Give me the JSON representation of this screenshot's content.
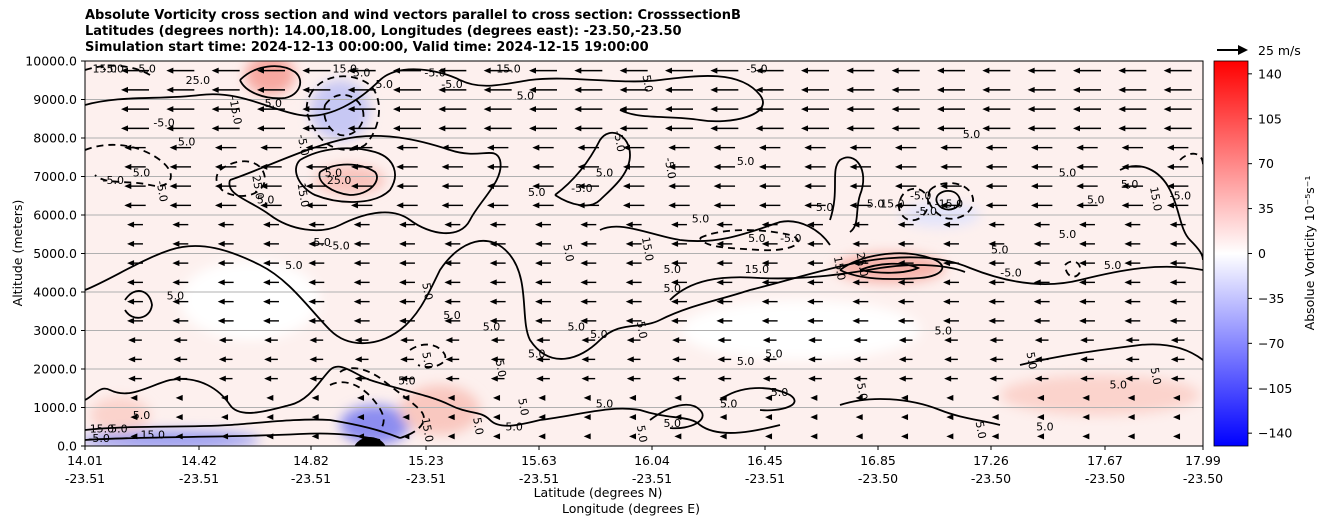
{
  "chart_data": {
    "type": "heatmap",
    "title_lines": [
      "Absolute Vorticity cross section and wind vectors parallel to cross section: CrosssectionB",
      "Latitudes (degrees north): 14.00,18.00, Longitudes (degrees east): -23.50,-23.50",
      "Simulation start time: 2024-12-13 00:00:00, Valid time: 2024-12-15 19:00:00"
    ],
    "ylabel": "Altitude (meters)",
    "xlabel_line1": "Latitude (degrees N)",
    "xlabel_line2": "Longitude (degrees E)",
    "ylim": [
      0,
      10000
    ],
    "y_ticks": [
      "0.0",
      "1000.0",
      "2000.0",
      "3000.0",
      "4000.0",
      "5000.0",
      "6000.0",
      "7000.0",
      "8000.0",
      "9000.0",
      "10000.0"
    ],
    "x_ticks": [
      {
        "lat": "14.01",
        "lon": "-23.51"
      },
      {
        "lat": "14.42",
        "lon": "-23.51"
      },
      {
        "lat": "14.82",
        "lon": "-23.51"
      },
      {
        "lat": "15.23",
        "lon": "-23.51"
      },
      {
        "lat": "15.63",
        "lon": "-23.51"
      },
      {
        "lat": "16.04",
        "lon": "-23.51"
      },
      {
        "lat": "16.45",
        "lon": "-23.51"
      },
      {
        "lat": "16.85",
        "lon": "-23.50"
      },
      {
        "lat": "17.26",
        "lon": "-23.50"
      },
      {
        "lat": "17.67",
        "lon": "-23.50"
      },
      {
        "lat": "17.99",
        "lon": "-23.50"
      }
    ],
    "grid": "horizontal",
    "colorbar": {
      "label": "Absolue Vorticity 10⁻⁵s⁻¹",
      "range": [
        -150,
        150
      ],
      "ticks": [
        "140",
        "105",
        "70",
        "35",
        "0",
        "−35",
        "−70",
        "−105",
        "−140"
      ],
      "colormap": "bwr",
      "colors": {
        "low": "#0000ff",
        "mid": "#ffffff",
        "high": "#ff0000"
      }
    },
    "wind_reference": "25 m/s",
    "contour_levels": [
      -15.0,
      -5.0,
      5.0,
      15.0,
      25.0
    ],
    "contour_labels": [
      {
        "text": "5.0",
        "x": 0.6,
        "y": 350
      },
      {
        "text": "15.0",
        "x": 0.3,
        "y": 350
      },
      {
        "text": "-5.0",
        "x": 0.25,
        "y": 100
      },
      {
        "text": "15.0",
        "x": 1.2,
        "y": 200
      },
      {
        "text": "5.0",
        "x": 1.0,
        "y": 700
      },
      {
        "text": "15.0",
        "x": 0.35,
        "y": 9700
      },
      {
        "text": "-5.0",
        "x": 0.5,
        "y": 9700
      },
      {
        "text": "5.0",
        "x": 1.1,
        "y": 9700
      },
      {
        "text": "25.0",
        "x": 2.0,
        "y": 9400
      },
      {
        "text": "-15.0",
        "x": 2.6,
        "y": 8700
      },
      {
        "text": "-5.0",
        "x": 3.3,
        "y": 8800
      },
      {
        "text": "15.0",
        "x": 4.6,
        "y": 9700
      },
      {
        "text": "5.0",
        "x": 4.9,
        "y": 9600
      },
      {
        "text": "5.0",
        "x": 5.3,
        "y": 9300
      },
      {
        "text": "-5.0",
        "x": 6.2,
        "y": 9600
      },
      {
        "text": "-5.0",
        "x": 6.5,
        "y": 9300
      },
      {
        "text": "15.0",
        "x": 7.5,
        "y": 9700
      },
      {
        "text": "5.0",
        "x": 7.8,
        "y": 9000
      },
      {
        "text": "5.0",
        "x": 9.9,
        "y": 9400
      },
      {
        "text": "-5.0",
        "x": 11.9,
        "y": 9700
      },
      {
        "text": "5.0",
        "x": 15.7,
        "y": 8000
      },
      {
        "text": "-5.0",
        "x": 0.5,
        "y": 6800
      },
      {
        "text": "5.0",
        "x": 1.0,
        "y": 7000
      },
      {
        "text": "-5.0",
        "x": 1.3,
        "y": 6600
      },
      {
        "text": "-5.0",
        "x": 1.4,
        "y": 8300
      },
      {
        "text": "5.0",
        "x": 1.8,
        "y": 7800
      },
      {
        "text": "25.0",
        "x": 3.0,
        "y": 6700
      },
      {
        "text": "5.0",
        "x": 3.2,
        "y": 6300
      },
      {
        "text": "15.0",
        "x": 3.8,
        "y": 6500
      },
      {
        "text": "-5.0",
        "x": 3.8,
        "y": 7800
      },
      {
        "text": "25.0",
        "x": 4.5,
        "y": 6800
      },
      {
        "text": "5.0",
        "x": 4.4,
        "y": 7000
      },
      {
        "text": "5.0",
        "x": 4.2,
        "y": 5200
      },
      {
        "text": "-5.0",
        "x": 4.5,
        "y": 5100
      },
      {
        "text": "5.0",
        "x": 3.7,
        "y": 4600
      },
      {
        "text": "5.0",
        "x": 1.6,
        "y": 3800
      },
      {
        "text": "5.0",
        "x": 6.0,
        "y": 4000
      },
      {
        "text": "5.0",
        "x": 6.5,
        "y": 3300
      },
      {
        "text": "5.0",
        "x": 7.2,
        "y": 3000
      },
      {
        "text": "5.0",
        "x": 8.0,
        "y": 2300
      },
      {
        "text": "5.0",
        "x": 8.0,
        "y": 6500
      },
      {
        "text": "-5.0",
        "x": 8.8,
        "y": 6600
      },
      {
        "text": "5.0",
        "x": 9.2,
        "y": 7000
      },
      {
        "text": "-5.0",
        "x": 9.4,
        "y": 7900
      },
      {
        "text": "5.0",
        "x": 8.5,
        "y": 5000
      },
      {
        "text": "5.0",
        "x": 8.7,
        "y": 3000
      },
      {
        "text": "5.0",
        "x": 9.1,
        "y": 2800
      },
      {
        "text": "5.0",
        "x": 9.8,
        "y": 3000
      },
      {
        "text": "15.0",
        "x": 9.9,
        "y": 5100
      },
      {
        "text": "5.0",
        "x": 10.4,
        "y": 4500
      },
      {
        "text": "5.0",
        "x": 10.4,
        "y": 4000
      },
      {
        "text": "-5.0",
        "x": 10.3,
        "y": 7200
      },
      {
        "text": "5.0",
        "x": 10.9,
        "y": 5800
      },
      {
        "text": "5.0",
        "x": 11.7,
        "y": 7300
      },
      {
        "text": "5.0",
        "x": 11.9,
        "y": 5300
      },
      {
        "text": "15.0",
        "x": 11.9,
        "y": 4500
      },
      {
        "text": "-5.0",
        "x": 12.5,
        "y": 5300
      },
      {
        "text": "5.0",
        "x": 13.1,
        "y": 6100
      },
      {
        "text": "15.0",
        "x": 13.3,
        "y": 4600
      },
      {
        "text": "25.0",
        "x": 13.7,
        "y": 4700
      },
      {
        "text": "5.0",
        "x": 14.0,
        "y": 6200
      },
      {
        "text": "15.0",
        "x": 14.3,
        "y": 6200
      },
      {
        "text": "-5.0",
        "x": 14.8,
        "y": 6400
      },
      {
        "text": "-5.0",
        "x": 14.9,
        "y": 6000
      },
      {
        "text": "-15.0",
        "x": 15.3,
        "y": 6200
      },
      {
        "text": "5.0",
        "x": 16.2,
        "y": 5000
      },
      {
        "text": "-5.0",
        "x": 16.4,
        "y": 4400
      },
      {
        "text": "5.0",
        "x": 17.4,
        "y": 7000
      },
      {
        "text": "5.0",
        "x": 17.9,
        "y": 6300
      },
      {
        "text": "15.0",
        "x": 18.9,
        "y": 6400
      },
      {
        "text": "5.0",
        "x": 18.5,
        "y": 6700
      },
      {
        "text": "-5.0",
        "x": 19.4,
        "y": 6400
      },
      {
        "text": "5.0",
        "x": 17.4,
        "y": 5400
      },
      {
        "text": "5.0",
        "x": 18.2,
        "y": 4600
      },
      {
        "text": "5.0",
        "x": 15.2,
        "y": 2900
      },
      {
        "text": "5.0",
        "x": 12.2,
        "y": 2300
      },
      {
        "text": "5.0",
        "x": 11.7,
        "y": 2100
      },
      {
        "text": "5.0",
        "x": 12.3,
        "y": 1300
      },
      {
        "text": "5.0",
        "x": 11.4,
        "y": 1000
      },
      {
        "text": "5.0",
        "x": 9.8,
        "y": 300
      },
      {
        "text": "5.0",
        "x": 10.4,
        "y": 500
      },
      {
        "text": "5.0",
        "x": 9.2,
        "y": 1000
      },
      {
        "text": "5.0",
        "x": 7.6,
        "y": 400
      },
      {
        "text": "5.0",
        "x": 6.9,
        "y": 500
      },
      {
        "text": "5.0",
        "x": 7.7,
        "y": 1000
      },
      {
        "text": "5.0",
        "x": 6.0,
        "y": 2200
      },
      {
        "text": "5.0",
        "x": 5.7,
        "y": 1600
      },
      {
        "text": "15.0",
        "x": 6.0,
        "y": 400
      },
      {
        "text": "5.0",
        "x": 15.8,
        "y": 400
      },
      {
        "text": "5.0",
        "x": 17.0,
        "y": 400
      },
      {
        "text": "5.0",
        "x": 18.3,
        "y": 1500
      },
      {
        "text": "5.0",
        "x": 18.9,
        "y": 1800
      },
      {
        "text": "5.0",
        "x": 16.7,
        "y": 2200
      },
      {
        "text": "5.0",
        "x": 13.7,
        "y": 1400
      },
      {
        "text": "5.0",
        "x": 7.3,
        "y": 2000
      }
    ],
    "wind_field": "mostly westward (leftward) wind vectors parallel to the cross section; strongest aloft (~8000-10000 m), weak near the surface"
  }
}
